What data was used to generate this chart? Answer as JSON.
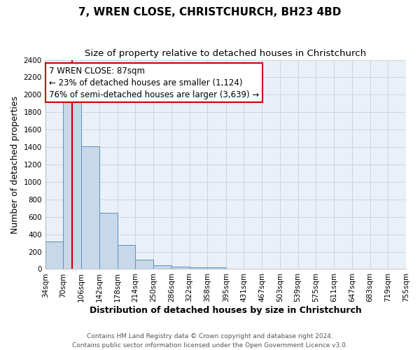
{
  "title": "7, WREN CLOSE, CHRISTCHURCH, BH23 4BD",
  "subtitle": "Size of property relative to detached houses in Christchurch",
  "xlabel": "Distribution of detached houses by size in Christchurch",
  "ylabel": "Number of detached properties",
  "bin_edges": [
    34,
    70,
    106,
    142,
    178,
    214,
    250,
    286,
    322,
    358,
    395,
    431,
    467,
    503,
    539,
    575,
    611,
    647,
    683,
    719,
    755
  ],
  "bar_heights": [
    320,
    1980,
    1410,
    650,
    280,
    105,
    45,
    30,
    20,
    20,
    0,
    0,
    0,
    0,
    0,
    0,
    0,
    0,
    0,
    0
  ],
  "bar_color": "#c8d8e8",
  "bar_edge_color": "#5a8fc0",
  "red_line_x": 87,
  "red_line_color": "#cc0000",
  "ylim": [
    0,
    2400
  ],
  "yticks": [
    0,
    200,
    400,
    600,
    800,
    1000,
    1200,
    1400,
    1600,
    1800,
    2000,
    2200,
    2400
  ],
  "annotation_line1": "7 WREN CLOSE: 87sqm",
  "annotation_line2": "← 23% of detached houses are smaller (1,124)",
  "annotation_line3": "76% of semi-detached houses are larger (3,639) →",
  "footer1": "Contains HM Land Registry data © Crown copyright and database right 2024.",
  "footer2": "Contains public sector information licensed under the Open Government Licence v3.0.",
  "bg_color": "#ffffff",
  "plot_bg_color": "#eaf0f8",
  "grid_color": "#c8d0dc",
  "title_fontsize": 11,
  "subtitle_fontsize": 9.5,
  "axis_label_fontsize": 9,
  "tick_fontsize": 7.5,
  "annotation_fontsize": 8.5,
  "footer_fontsize": 6.5
}
